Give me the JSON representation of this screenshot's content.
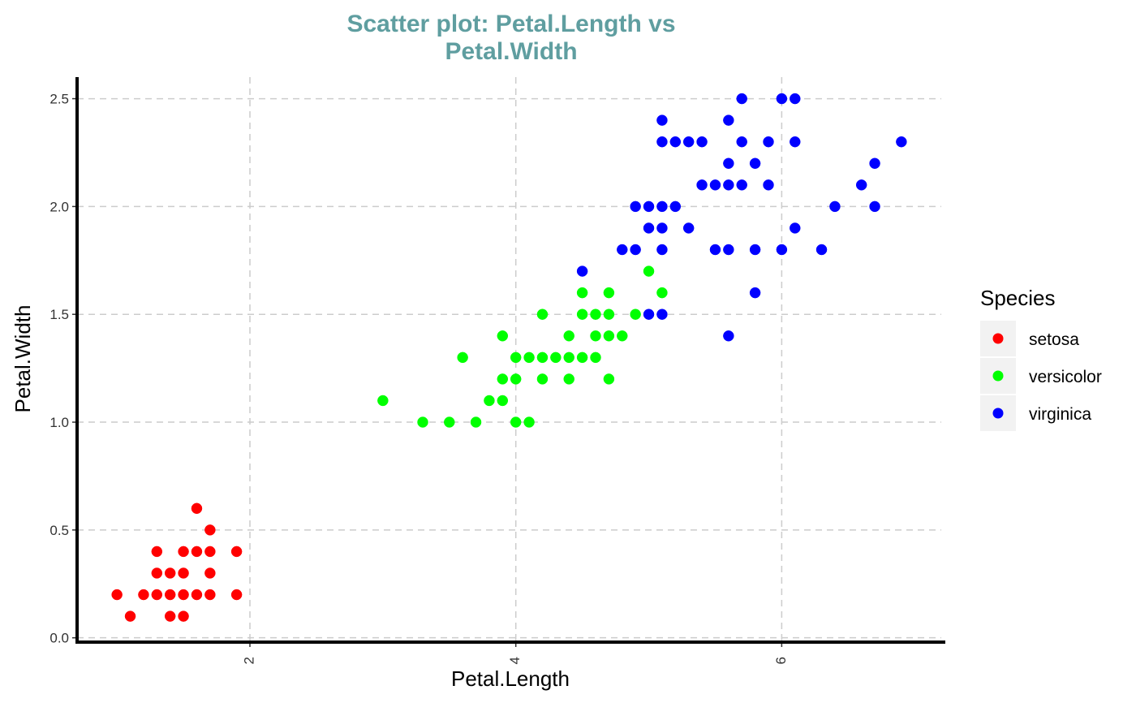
{
  "chart_data": {
    "type": "scatter",
    "title_lines": [
      "Scatter plot: Petal.Length vs",
      "Petal.Width"
    ],
    "xlabel": "Petal.Length",
    "ylabel": "Petal.Width",
    "xlim": [
      0.7,
      7.2
    ],
    "ylim": [
      -0.02,
      2.6
    ],
    "x_ticks": [
      2,
      4,
      6
    ],
    "x_tick_labels": [
      "2",
      "4",
      "6"
    ],
    "y_ticks": [
      0,
      0.5,
      1,
      1.5,
      2,
      2.5
    ],
    "y_tick_labels": [
      "0.0",
      "0.5",
      "1.0",
      "1.5",
      "2.0",
      "2.5"
    ],
    "grid": true,
    "legend": {
      "title": "Species",
      "position": "right"
    },
    "series": [
      {
        "name": "setosa",
        "color": "#ff0000",
        "points": [
          [
            1.0,
            0.2
          ],
          [
            1.1,
            0.1
          ],
          [
            1.2,
            0.2
          ],
          [
            1.3,
            0.2
          ],
          [
            1.3,
            0.3
          ],
          [
            1.3,
            0.4
          ],
          [
            1.4,
            0.1
          ],
          [
            1.4,
            0.2
          ],
          [
            1.4,
            0.3
          ],
          [
            1.5,
            0.1
          ],
          [
            1.5,
            0.2
          ],
          [
            1.5,
            0.3
          ],
          [
            1.5,
            0.4
          ],
          [
            1.6,
            0.2
          ],
          [
            1.6,
            0.4
          ],
          [
            1.6,
            0.6
          ],
          [
            1.7,
            0.2
          ],
          [
            1.7,
            0.3
          ],
          [
            1.7,
            0.4
          ],
          [
            1.7,
            0.5
          ],
          [
            1.9,
            0.2
          ],
          [
            1.9,
            0.4
          ]
        ]
      },
      {
        "name": "versicolor",
        "color": "#00ff00",
        "points": [
          [
            3.0,
            1.1
          ],
          [
            3.3,
            1.0
          ],
          [
            3.5,
            1.0
          ],
          [
            3.6,
            1.3
          ],
          [
            3.7,
            1.0
          ],
          [
            3.8,
            1.1
          ],
          [
            3.9,
            1.1
          ],
          [
            3.9,
            1.2
          ],
          [
            3.9,
            1.4
          ],
          [
            4.0,
            1.0
          ],
          [
            4.0,
            1.2
          ],
          [
            4.0,
            1.3
          ],
          [
            4.1,
            1.0
          ],
          [
            4.1,
            1.3
          ],
          [
            4.2,
            1.2
          ],
          [
            4.2,
            1.3
          ],
          [
            4.2,
            1.5
          ],
          [
            4.3,
            1.3
          ],
          [
            4.4,
            1.2
          ],
          [
            4.4,
            1.3
          ],
          [
            4.4,
            1.4
          ],
          [
            4.5,
            1.3
          ],
          [
            4.5,
            1.5
          ],
          [
            4.5,
            1.6
          ],
          [
            4.6,
            1.3
          ],
          [
            4.6,
            1.4
          ],
          [
            4.6,
            1.5
          ],
          [
            4.7,
            1.2
          ],
          [
            4.7,
            1.4
          ],
          [
            4.7,
            1.5
          ],
          [
            4.7,
            1.6
          ],
          [
            4.8,
            1.4
          ],
          [
            4.9,
            1.5
          ],
          [
            5.0,
            1.7
          ],
          [
            5.1,
            1.6
          ]
        ]
      },
      {
        "name": "virginica",
        "color": "#0000ff",
        "points": [
          [
            4.5,
            1.7
          ],
          [
            4.8,
            1.8
          ],
          [
            4.9,
            1.8
          ],
          [
            4.9,
            2.0
          ],
          [
            5.0,
            1.5
          ],
          [
            5.0,
            1.9
          ],
          [
            5.0,
            2.0
          ],
          [
            5.1,
            1.5
          ],
          [
            5.1,
            1.8
          ],
          [
            5.1,
            1.9
          ],
          [
            5.1,
            2.0
          ],
          [
            5.1,
            2.3
          ],
          [
            5.1,
            2.4
          ],
          [
            5.2,
            2.0
          ],
          [
            5.2,
            2.3
          ],
          [
            5.3,
            1.9
          ],
          [
            5.3,
            2.3
          ],
          [
            5.4,
            2.1
          ],
          [
            5.4,
            2.3
          ],
          [
            5.5,
            1.8
          ],
          [
            5.5,
            2.1
          ],
          [
            5.6,
            1.4
          ],
          [
            5.6,
            1.8
          ],
          [
            5.6,
            2.1
          ],
          [
            5.6,
            2.2
          ],
          [
            5.6,
            2.4
          ],
          [
            5.7,
            2.1
          ],
          [
            5.7,
            2.3
          ],
          [
            5.7,
            2.5
          ],
          [
            5.8,
            1.6
          ],
          [
            5.8,
            1.8
          ],
          [
            5.8,
            2.2
          ],
          [
            5.9,
            2.1
          ],
          [
            5.9,
            2.3
          ],
          [
            6.0,
            1.8
          ],
          [
            6.0,
            2.5
          ],
          [
            6.1,
            1.9
          ],
          [
            6.1,
            2.3
          ],
          [
            6.1,
            2.5
          ],
          [
            6.3,
            1.8
          ],
          [
            6.4,
            2.0
          ],
          [
            6.6,
            2.1
          ],
          [
            6.7,
            2.0
          ],
          [
            6.7,
            2.2
          ],
          [
            6.9,
            2.3
          ]
        ]
      }
    ]
  }
}
